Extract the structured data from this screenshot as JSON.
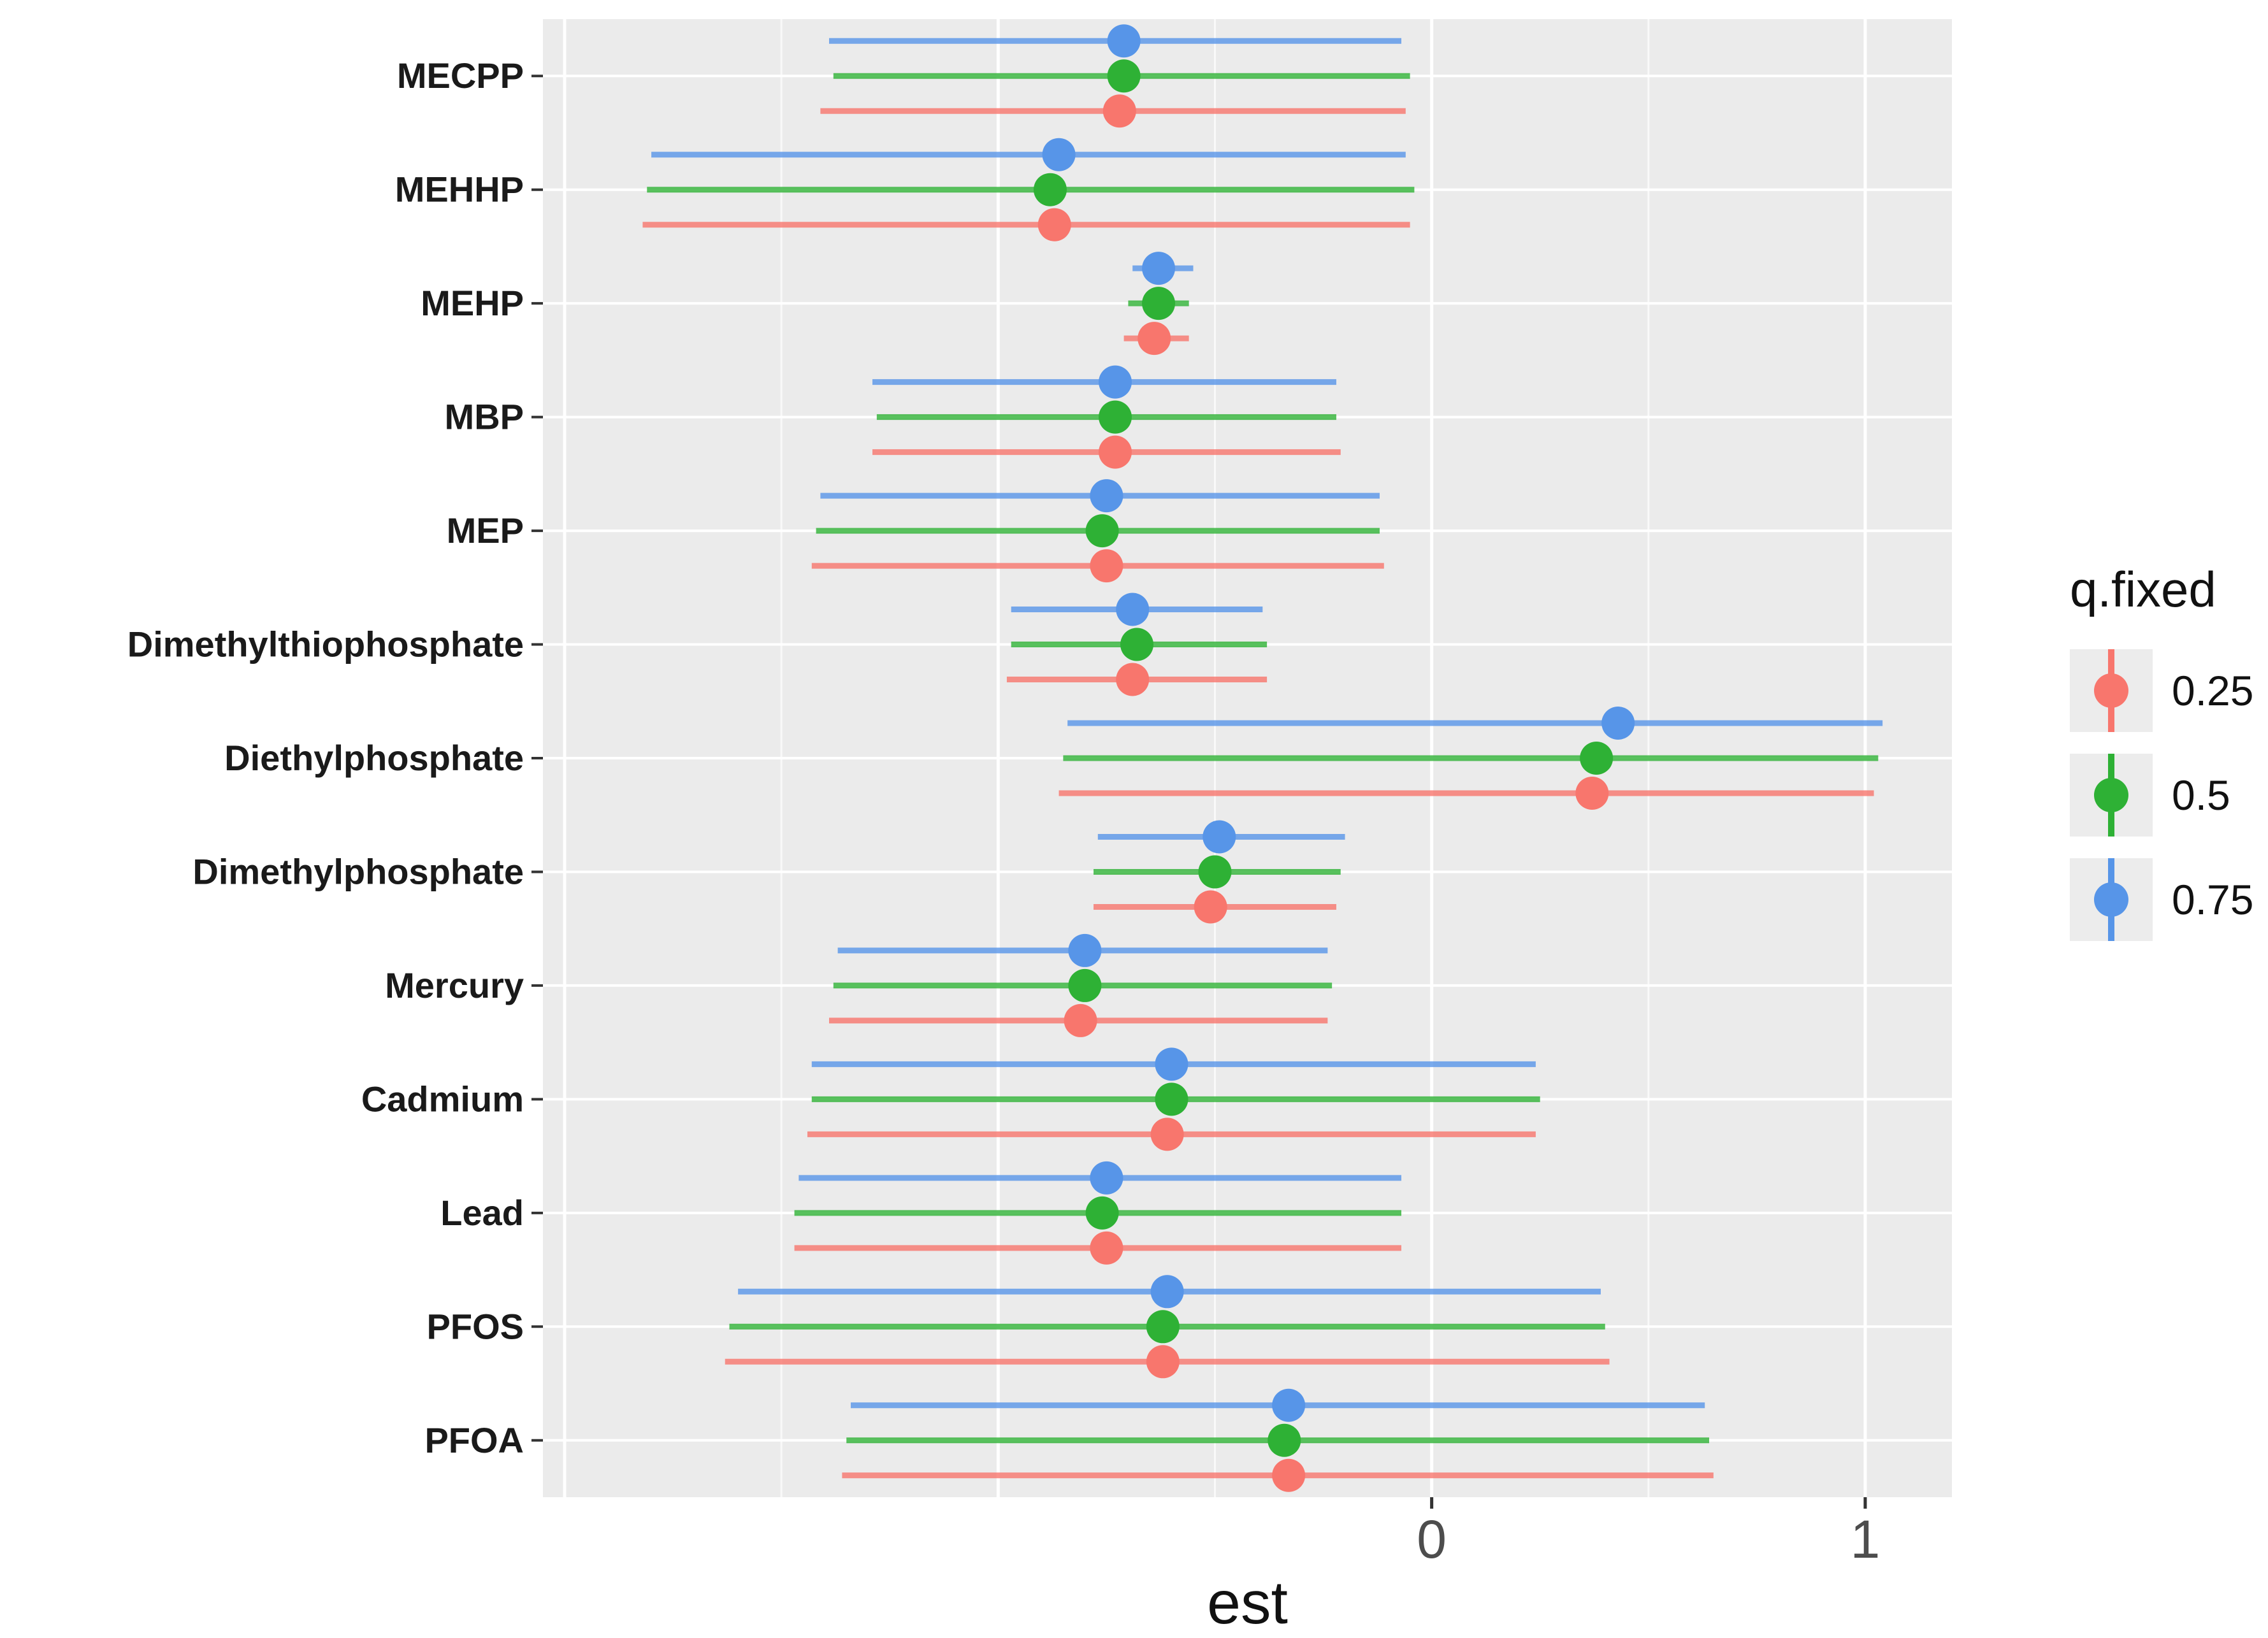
{
  "chart_data": {
    "type": "scatter",
    "subtype": "forest-plot-dot-with-error-bars",
    "orientation": "horizontal",
    "title": "",
    "xlabel": "est",
    "ylabel": "",
    "xlim": [
      -2.05,
      1.2
    ],
    "grid": true,
    "panel_bg": "#EBEBEB",
    "gridline_color": "#FFFFFF",
    "x_ticks": [
      {
        "value": 0,
        "label": "0"
      },
      {
        "value": 1,
        "label": "1"
      }
    ],
    "x_major_gridlines": [
      -2,
      -1,
      0,
      1
    ],
    "x_minor_gridlines": [
      -1.5,
      -0.5,
      0.5
    ],
    "categories": [
      "MECPP",
      "MEHHP",
      "MEHP",
      "MBP",
      "MEP",
      "Dimethylthiophosphate",
      "Diethylphosphate",
      "Dimethylphosphate",
      "Mercury",
      "Cadmium",
      "Lead",
      "PFOS",
      "PFOA"
    ],
    "legend": {
      "title": "q.fixed",
      "position": "right",
      "entries": [
        {
          "label": "0.25",
          "color": "#F8766D"
        },
        {
          "label": "0.5",
          "color": "#2EB135"
        },
        {
          "label": "0.75",
          "color": "#5795E8"
        }
      ]
    },
    "series": [
      {
        "name": "0.25",
        "color": "#F8766D",
        "points": [
          {
            "category": "MECPP",
            "est": -0.72,
            "lo": -1.41,
            "hi": -0.06
          },
          {
            "category": "MEHHP",
            "est": -0.87,
            "lo": -1.82,
            "hi": -0.05
          },
          {
            "category": "MEHP",
            "est": -0.64,
            "lo": -0.71,
            "hi": -0.56
          },
          {
            "category": "MBP",
            "est": -0.73,
            "lo": -1.29,
            "hi": -0.21
          },
          {
            "category": "MEP",
            "est": -0.75,
            "lo": -1.43,
            "hi": -0.11
          },
          {
            "category": "Dimethylthiophosphate",
            "est": -0.69,
            "lo": -0.98,
            "hi": -0.38
          },
          {
            "category": "Diethylphosphate",
            "est": 0.37,
            "lo": -0.86,
            "hi": 1.02
          },
          {
            "category": "Dimethylphosphate",
            "est": -0.51,
            "lo": -0.78,
            "hi": -0.22
          },
          {
            "category": "Mercury",
            "est": -0.81,
            "lo": -1.39,
            "hi": -0.24
          },
          {
            "category": "Cadmium",
            "est": -0.61,
            "lo": -1.44,
            "hi": 0.24
          },
          {
            "category": "Lead",
            "est": -0.75,
            "lo": -1.47,
            "hi": -0.07
          },
          {
            "category": "PFOS",
            "est": -0.62,
            "lo": -1.63,
            "hi": 0.41
          },
          {
            "category": "PFOA",
            "est": -0.33,
            "lo": -1.36,
            "hi": 0.65
          }
        ]
      },
      {
        "name": "0.5",
        "color": "#2EB135",
        "points": [
          {
            "category": "MECPP",
            "est": -0.71,
            "lo": -1.38,
            "hi": -0.05
          },
          {
            "category": "MEHHP",
            "est": -0.88,
            "lo": -1.81,
            "hi": -0.04
          },
          {
            "category": "MEHP",
            "est": -0.63,
            "lo": -0.7,
            "hi": -0.56
          },
          {
            "category": "MBP",
            "est": -0.73,
            "lo": -1.28,
            "hi": -0.22
          },
          {
            "category": "MEP",
            "est": -0.76,
            "lo": -1.42,
            "hi": -0.12
          },
          {
            "category": "Dimethylthiophosphate",
            "est": -0.68,
            "lo": -0.97,
            "hi": -0.38
          },
          {
            "category": "Diethylphosphate",
            "est": 0.38,
            "lo": -0.85,
            "hi": 1.03
          },
          {
            "category": "Dimethylphosphate",
            "est": -0.5,
            "lo": -0.78,
            "hi": -0.21
          },
          {
            "category": "Mercury",
            "est": -0.8,
            "lo": -1.38,
            "hi": -0.23
          },
          {
            "category": "Cadmium",
            "est": -0.6,
            "lo": -1.43,
            "hi": 0.25
          },
          {
            "category": "Lead",
            "est": -0.76,
            "lo": -1.47,
            "hi": -0.07
          },
          {
            "category": "PFOS",
            "est": -0.62,
            "lo": -1.62,
            "hi": 0.4
          },
          {
            "category": "PFOA",
            "est": -0.34,
            "lo": -1.35,
            "hi": 0.64
          }
        ]
      },
      {
        "name": "0.75",
        "color": "#5795E8",
        "points": [
          {
            "category": "MECPP",
            "est": -0.71,
            "lo": -1.39,
            "hi": -0.07
          },
          {
            "category": "MEHHP",
            "est": -0.86,
            "lo": -1.8,
            "hi": -0.06
          },
          {
            "category": "MEHP",
            "est": -0.63,
            "lo": -0.69,
            "hi": -0.55
          },
          {
            "category": "MBP",
            "est": -0.73,
            "lo": -1.29,
            "hi": -0.22
          },
          {
            "category": "MEP",
            "est": -0.75,
            "lo": -1.41,
            "hi": -0.12
          },
          {
            "category": "Dimethylthiophosphate",
            "est": -0.69,
            "lo": -0.97,
            "hi": -0.39
          },
          {
            "category": "Diethylphosphate",
            "est": 0.43,
            "lo": -0.84,
            "hi": 1.04
          },
          {
            "category": "Dimethylphosphate",
            "est": -0.49,
            "lo": -0.77,
            "hi": -0.2
          },
          {
            "category": "Mercury",
            "est": -0.8,
            "lo": -1.37,
            "hi": -0.24
          },
          {
            "category": "Cadmium",
            "est": -0.6,
            "lo": -1.43,
            "hi": 0.24
          },
          {
            "category": "Lead",
            "est": -0.75,
            "lo": -1.46,
            "hi": -0.07
          },
          {
            "category": "PFOS",
            "est": -0.61,
            "lo": -1.6,
            "hi": 0.39
          },
          {
            "category": "PFOA",
            "est": -0.33,
            "lo": -1.34,
            "hi": 0.63
          }
        ]
      }
    ]
  }
}
